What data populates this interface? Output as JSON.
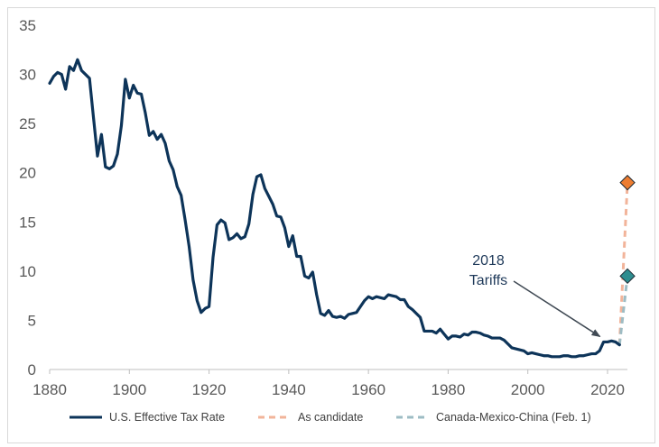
{
  "chart_data": {
    "type": "line",
    "title": "",
    "xlabel": "",
    "ylabel": "",
    "xlim": [
      1880,
      2025
    ],
    "ylim": [
      0,
      35
    ],
    "x_ticks": [
      1880,
      1900,
      1920,
      1940,
      1960,
      1980,
      2000,
      2020
    ],
    "y_ticks": [
      0,
      5,
      10,
      15,
      20,
      25,
      30,
      35
    ],
    "grid": "none",
    "legend_position": "bottom",
    "series": [
      {
        "name": "U.S. Effective Tax Rate",
        "style": "solid",
        "color": "#0d3459",
        "points": [
          [
            1880,
            29.1
          ],
          [
            1881,
            29.8
          ],
          [
            1882,
            30.2
          ],
          [
            1883,
            30.0
          ],
          [
            1884,
            28.5
          ],
          [
            1885,
            30.8
          ],
          [
            1886,
            30.4
          ],
          [
            1887,
            31.5
          ],
          [
            1888,
            30.4
          ],
          [
            1889,
            30.0
          ],
          [
            1890,
            29.6
          ],
          [
            1891,
            25.6
          ],
          [
            1892,
            21.7
          ],
          [
            1893,
            23.9
          ],
          [
            1894,
            20.6
          ],
          [
            1895,
            20.4
          ],
          [
            1896,
            20.7
          ],
          [
            1897,
            21.9
          ],
          [
            1898,
            24.8
          ],
          [
            1899,
            29.5
          ],
          [
            1900,
            27.6
          ],
          [
            1901,
            28.9
          ],
          [
            1902,
            28.1
          ],
          [
            1903,
            28.0
          ],
          [
            1904,
            26.1
          ],
          [
            1905,
            23.8
          ],
          [
            1906,
            24.2
          ],
          [
            1907,
            23.4
          ],
          [
            1908,
            23.9
          ],
          [
            1909,
            23.0
          ],
          [
            1910,
            21.2
          ],
          [
            1911,
            20.3
          ],
          [
            1912,
            18.6
          ],
          [
            1913,
            17.7
          ],
          [
            1914,
            15.2
          ],
          [
            1915,
            12.5
          ],
          [
            1916,
            9.1
          ],
          [
            1917,
            7.0
          ],
          [
            1918,
            5.8
          ],
          [
            1919,
            6.2
          ],
          [
            1920,
            6.4
          ],
          [
            1921,
            11.4
          ],
          [
            1922,
            14.7
          ],
          [
            1923,
            15.2
          ],
          [
            1924,
            14.9
          ],
          [
            1925,
            13.2
          ],
          [
            1926,
            13.4
          ],
          [
            1927,
            13.8
          ],
          [
            1928,
            13.3
          ],
          [
            1929,
            13.5
          ],
          [
            1930,
            14.8
          ],
          [
            1931,
            17.8
          ],
          [
            1932,
            19.6
          ],
          [
            1933,
            19.8
          ],
          [
            1934,
            18.4
          ],
          [
            1935,
            17.6
          ],
          [
            1936,
            16.8
          ],
          [
            1937,
            15.6
          ],
          [
            1938,
            15.5
          ],
          [
            1939,
            14.4
          ],
          [
            1940,
            12.5
          ],
          [
            1941,
            13.6
          ],
          [
            1942,
            11.5
          ],
          [
            1943,
            11.5
          ],
          [
            1944,
            9.5
          ],
          [
            1945,
            9.3
          ],
          [
            1946,
            9.9
          ],
          [
            1947,
            7.6
          ],
          [
            1948,
            5.7
          ],
          [
            1949,
            5.5
          ],
          [
            1950,
            6.0
          ],
          [
            1951,
            5.4
          ],
          [
            1952,
            5.3
          ],
          [
            1953,
            5.4
          ],
          [
            1954,
            5.2
          ],
          [
            1955,
            5.6
          ],
          [
            1956,
            5.7
          ],
          [
            1957,
            5.8
          ],
          [
            1958,
            6.4
          ],
          [
            1959,
            7.0
          ],
          [
            1960,
            7.4
          ],
          [
            1961,
            7.2
          ],
          [
            1962,
            7.4
          ],
          [
            1963,
            7.3
          ],
          [
            1964,
            7.2
          ],
          [
            1965,
            7.6
          ],
          [
            1966,
            7.5
          ],
          [
            1967,
            7.4
          ],
          [
            1968,
            7.1
          ],
          [
            1969,
            7.1
          ],
          [
            1970,
            6.4
          ],
          [
            1971,
            6.1
          ],
          [
            1972,
            5.7
          ],
          [
            1973,
            5.3
          ],
          [
            1974,
            3.9
          ],
          [
            1975,
            3.9
          ],
          [
            1976,
            3.9
          ],
          [
            1977,
            3.7
          ],
          [
            1978,
            4.1
          ],
          [
            1979,
            3.6
          ],
          [
            1980,
            3.1
          ],
          [
            1981,
            3.4
          ],
          [
            1982,
            3.4
          ],
          [
            1983,
            3.3
          ],
          [
            1984,
            3.6
          ],
          [
            1985,
            3.5
          ],
          [
            1986,
            3.8
          ],
          [
            1987,
            3.8
          ],
          [
            1988,
            3.7
          ],
          [
            1989,
            3.5
          ],
          [
            1990,
            3.4
          ],
          [
            1991,
            3.2
          ],
          [
            1992,
            3.2
          ],
          [
            1993,
            3.2
          ],
          [
            1994,
            3.0
          ],
          [
            1995,
            2.6
          ],
          [
            1996,
            2.2
          ],
          [
            1997,
            2.1
          ],
          [
            1998,
            2.0
          ],
          [
            1999,
            1.9
          ],
          [
            2000,
            1.6
          ],
          [
            2001,
            1.7
          ],
          [
            2002,
            1.6
          ],
          [
            2003,
            1.5
          ],
          [
            2004,
            1.4
          ],
          [
            2005,
            1.4
          ],
          [
            2006,
            1.3
          ],
          [
            2007,
            1.3
          ],
          [
            2008,
            1.3
          ],
          [
            2009,
            1.4
          ],
          [
            2010,
            1.4
          ],
          [
            2011,
            1.3
          ],
          [
            2012,
            1.3
          ],
          [
            2013,
            1.4
          ],
          [
            2014,
            1.4
          ],
          [
            2015,
            1.5
          ],
          [
            2016,
            1.6
          ],
          [
            2017,
            1.6
          ],
          [
            2018,
            1.9
          ],
          [
            2019,
            2.8
          ],
          [
            2020,
            2.8
          ],
          [
            2021,
            2.9
          ],
          [
            2022,
            2.8
          ],
          [
            2023,
            2.5
          ]
        ]
      },
      {
        "name": "As candidate",
        "style": "dashed",
        "color": "#f2b49a",
        "marker_color": "#ed7d31",
        "points": [
          [
            2023,
            2.5
          ],
          [
            2025,
            19.0
          ]
        ]
      },
      {
        "name": "Canada-Mexico-China (Feb. 1)",
        "style": "dashed",
        "color": "#9dbcc4",
        "marker_color": "#2f8d8f",
        "points": [
          [
            2023,
            2.5
          ],
          [
            2025,
            9.5
          ]
        ]
      }
    ],
    "annotations": [
      {
        "text_line1": "2018",
        "text_line2": "Tariffs",
        "points_to": [
          2019,
          2.8
        ]
      }
    ]
  }
}
